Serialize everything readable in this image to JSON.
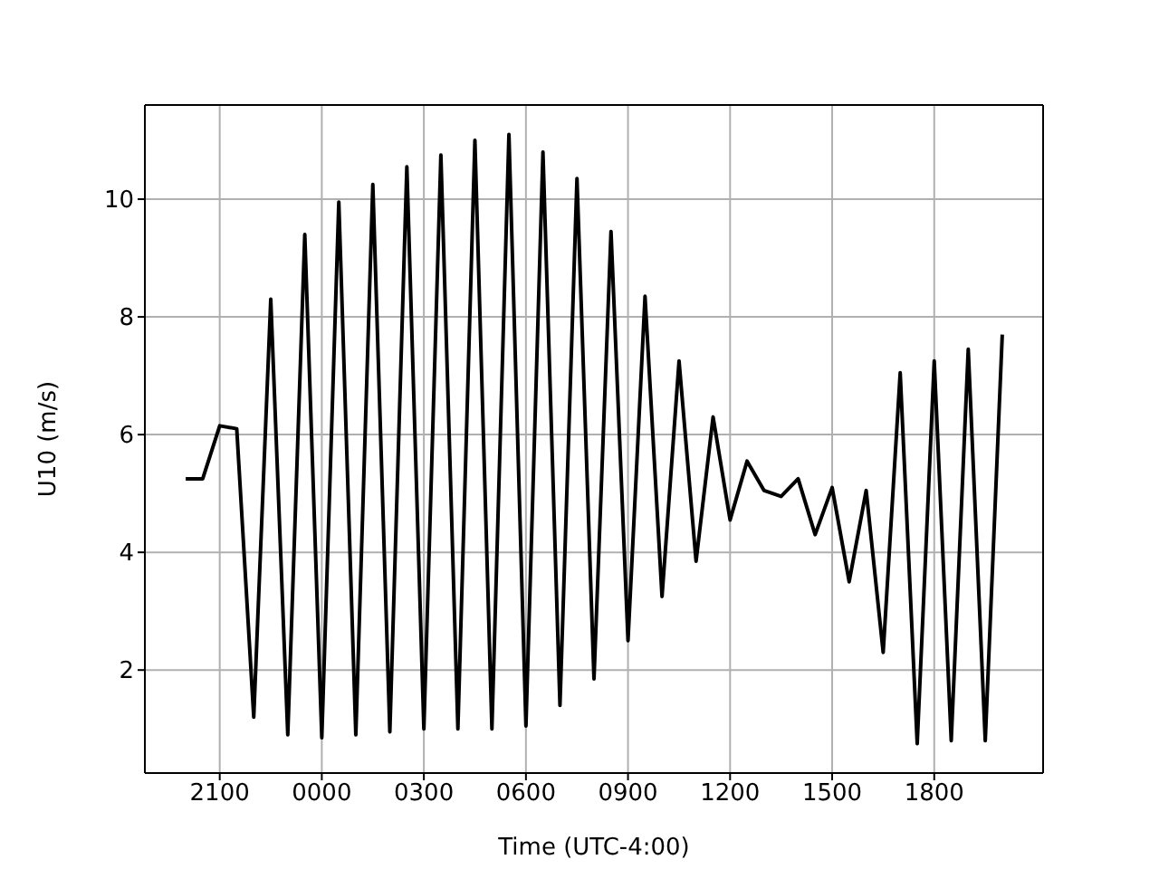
{
  "chart_data": {
    "type": "line",
    "xlabel": "Time (UTC-4:00)",
    "ylabel": "U10 (m/s)",
    "categories": [
      null,
      null,
      "2100",
      null,
      null,
      null,
      null,
      null,
      "0000",
      null,
      null,
      null,
      null,
      null,
      "0300",
      null,
      null,
      null,
      null,
      null,
      "0600",
      null,
      null,
      null,
      null,
      null,
      "0900",
      null,
      null,
      null,
      null,
      null,
      "1200",
      null,
      null,
      null,
      null,
      null,
      "1500",
      null,
      null,
      null,
      null,
      null,
      "1800",
      null,
      null,
      null,
      null
    ],
    "series": [
      {
        "color": "#000000",
        "values": [
          5.25,
          5.25,
          6.15,
          6.1,
          1.2,
          8.3,
          0.9,
          9.4,
          0.85,
          9.95,
          0.9,
          10.25,
          0.95,
          10.55,
          1.0,
          10.75,
          1.0,
          11.0,
          1.0,
          11.1,
          1.05,
          10.8,
          1.4,
          10.35,
          1.85,
          9.45,
          2.5,
          8.35,
          3.25,
          7.25,
          3.85,
          6.3,
          4.55,
          5.55,
          5.05,
          4.95,
          5.25,
          4.3,
          5.1,
          3.5,
          5.05,
          2.3,
          7.05,
          0.75,
          7.25,
          0.8,
          7.45,
          0.8,
          7.7
        ]
      }
    ],
    "ylim": [
      0.25,
      11.6
    ],
    "yticks": [
      2,
      4,
      6,
      8,
      10
    ],
    "grid": true,
    "marker": "none",
    "line_style": "solid"
  }
}
